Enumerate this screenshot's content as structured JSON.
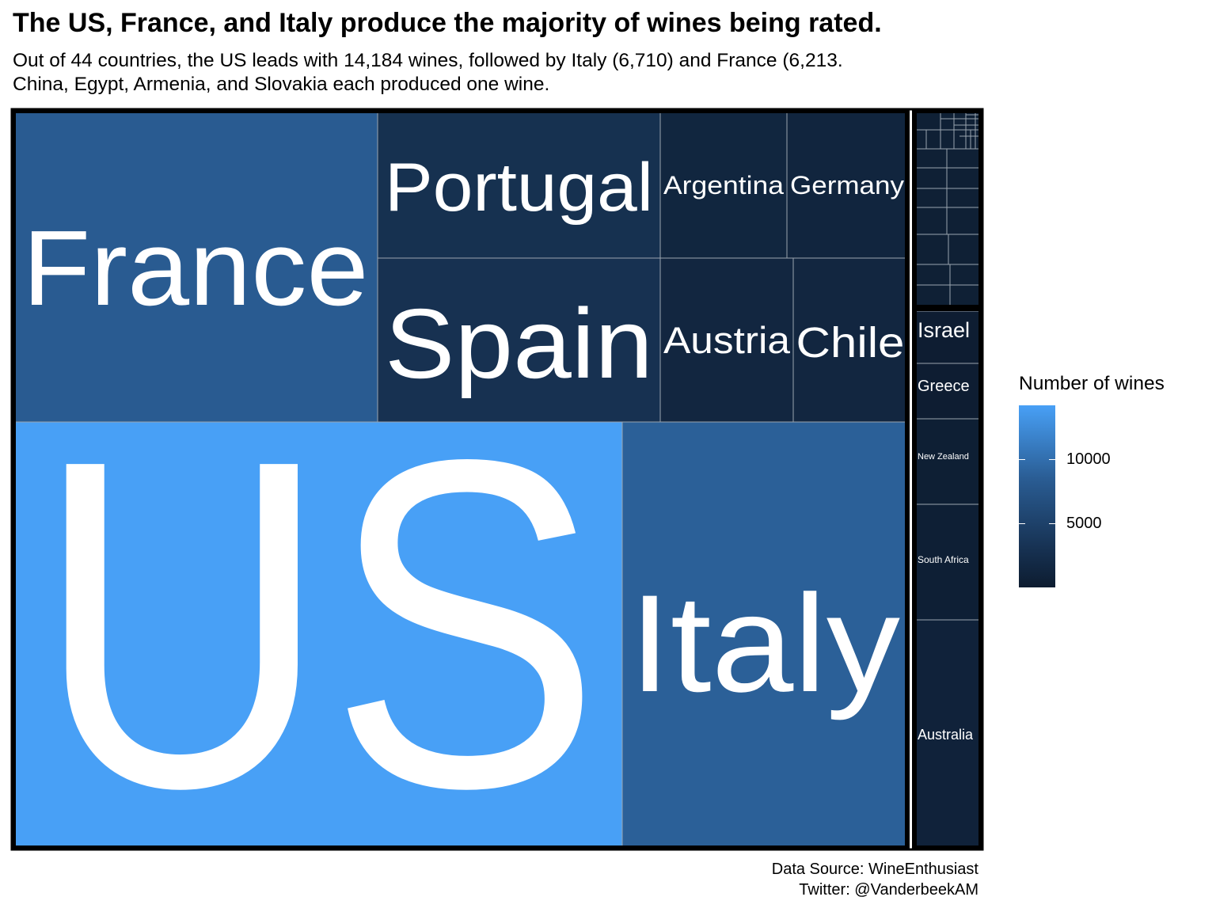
{
  "title": "The US, France, and Italy produce the majority of wines being rated.",
  "subtitle_line1": "Out of 44 countries, the US leads with 14,184 wines, followed by Italy (6,710) and France (6,213.",
  "subtitle_line2": "China, Egypt, Armenia, and Slovakia each produced one wine.",
  "caption_line1": "Data Source: WineEnthusiast",
  "caption_line2": "Twitter: @VanderbeekAM",
  "legend": {
    "title": "Number of wines",
    "ticks": [
      {
        "label": "10000",
        "value": 10000
      },
      {
        "label": "5000",
        "value": 5000
      }
    ],
    "min_value": 1,
    "max_value": 14184
  },
  "colors": {
    "high": "#48a0f6",
    "mid": "#2a5d94",
    "low": "#0d1c30",
    "border": "#000000",
    "divider": "#9aa4ae",
    "label": "#ffffff"
  },
  "chart_data": {
    "type": "treemap",
    "metric": "Number of wines",
    "countries": [
      {
        "name": "US",
        "value": 14184
      },
      {
        "name": "Italy",
        "value": 6710
      },
      {
        "name": "France",
        "value": 6213
      },
      {
        "name": "Spain",
        "value": 2100
      },
      {
        "name": "Portugal",
        "value": 2050
      },
      {
        "name": "Chile",
        "value": 1020
      },
      {
        "name": "Austria",
        "value": 1000
      },
      {
        "name": "Argentina",
        "value": 950
      },
      {
        "name": "Germany",
        "value": 900
      },
      {
        "name": "Australia",
        "value": 630
      },
      {
        "name": "South Africa",
        "value": 330
      },
      {
        "name": "New Zealand",
        "value": 270
      },
      {
        "name": "Greece",
        "value": 140
      },
      {
        "name": "Israel",
        "value": 130
      },
      {
        "name": "China",
        "value": 1
      },
      {
        "name": "Egypt",
        "value": 1
      },
      {
        "name": "Armenia",
        "value": 1
      },
      {
        "name": "Slovakia",
        "value": 1
      }
    ]
  }
}
